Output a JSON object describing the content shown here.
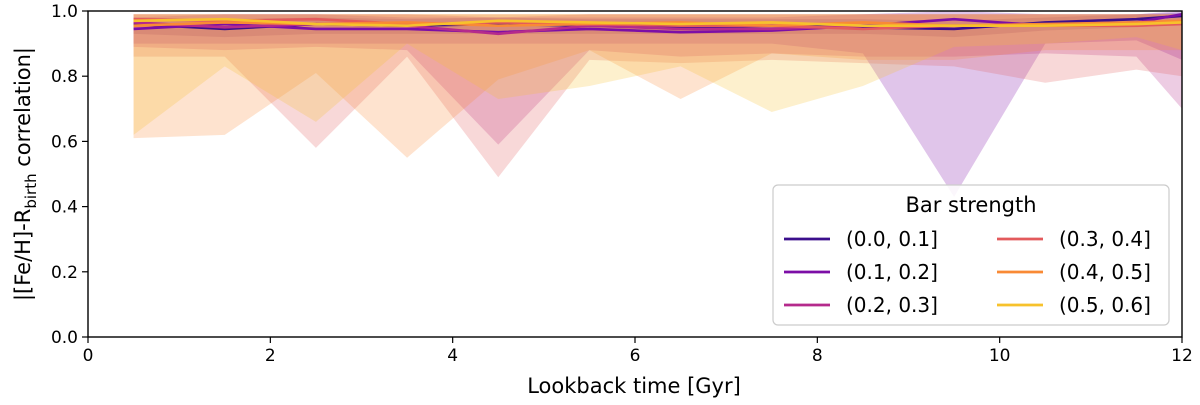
{
  "chart_data": {
    "type": "line",
    "title": "",
    "xlabel": "Lookback time [Gyr]",
    "ylabel_prefix": "|[Fe/H]-R",
    "ylabel_sub": "birth",
    "ylabel_suffix": " correlation|",
    "xlim": [
      0,
      12
    ],
    "ylim": [
      0.0,
      1.0
    ],
    "xticks": [
      0,
      2,
      4,
      6,
      8,
      10,
      12
    ],
    "yticks": [
      0.0,
      0.2,
      0.4,
      0.6,
      0.8,
      1.0
    ],
    "ytick_labels": [
      "0.0",
      "0.2",
      "0.4",
      "0.6",
      "0.8",
      "1.0"
    ],
    "grid": false,
    "legend": {
      "title": "Bar strength",
      "placement": "lower-right",
      "columns": 2
    },
    "x": [
      0.5,
      1.5,
      2.5,
      3.5,
      4.5,
      5.5,
      6.5,
      7.5,
      8.5,
      9.5,
      10.5,
      11.5,
      12.0
    ],
    "series": [
      {
        "name": "(0.0, 0.1]",
        "color": "#3b0f8c",
        "values": [
          0.96,
          0.945,
          0.96,
          0.955,
          0.96,
          0.955,
          0.95,
          0.955,
          0.95,
          0.945,
          0.965,
          0.975,
          0.985
        ],
        "lower": [
          0.93,
          0.92,
          0.93,
          0.93,
          0.93,
          0.93,
          0.93,
          0.93,
          0.93,
          0.92,
          0.94,
          0.95,
          0.96
        ],
        "upper": [
          0.98,
          0.975,
          0.98,
          0.975,
          0.98,
          0.975,
          0.975,
          0.975,
          0.975,
          0.97,
          0.98,
          0.99,
          0.995
        ]
      },
      {
        "name": "(0.1, 0.2]",
        "color": "#7c0ea6",
        "values": [
          0.945,
          0.96,
          0.945,
          0.945,
          0.935,
          0.945,
          0.935,
          0.94,
          0.955,
          0.975,
          0.955,
          0.965,
          0.99
        ],
        "lower": [
          0.9,
          0.9,
          0.9,
          0.9,
          0.9,
          0.9,
          0.9,
          0.9,
          0.87,
          0.43,
          0.9,
          0.91,
          0.85
        ],
        "upper": [
          0.98,
          0.99,
          0.99,
          0.98,
          0.98,
          0.98,
          0.98,
          0.98,
          0.99,
          1.0,
          0.99,
          0.99,
          1.0
        ]
      },
      {
        "name": "(0.2, 0.3]",
        "color": "#b52a8c",
        "values": [
          0.965,
          0.95,
          0.96,
          0.955,
          0.93,
          0.955,
          0.945,
          0.945,
          0.955,
          0.955,
          0.955,
          0.96,
          0.965
        ],
        "lower": [
          0.89,
          0.88,
          0.89,
          0.88,
          0.59,
          0.88,
          0.86,
          0.87,
          0.86,
          0.86,
          0.87,
          0.86,
          0.7
        ],
        "upper": [
          0.99,
          0.99,
          0.99,
          0.99,
          0.98,
          0.99,
          0.99,
          0.99,
          0.99,
          0.99,
          0.99,
          0.99,
          0.99
        ]
      },
      {
        "name": "(0.3, 0.4]",
        "color": "#e35a5c",
        "values": [
          0.975,
          0.97,
          0.975,
          0.96,
          0.965,
          0.96,
          0.955,
          0.955,
          0.945,
          0.955,
          0.955,
          0.955,
          0.96
        ],
        "lower": [
          0.86,
          0.86,
          0.58,
          0.86,
          0.49,
          0.85,
          0.84,
          0.85,
          0.84,
          0.83,
          0.78,
          0.82,
          0.8
        ],
        "upper": [
          0.99,
          0.99,
          0.99,
          0.99,
          0.99,
          0.99,
          0.99,
          0.99,
          0.99,
          0.99,
          0.99,
          0.99,
          0.99
        ]
      },
      {
        "name": "(0.4, 0.5]",
        "color": "#f98a35",
        "values": [
          0.955,
          0.965,
          0.96,
          0.965,
          0.955,
          0.96,
          0.965,
          0.955,
          0.965,
          0.955,
          0.96,
          0.965,
          0.97
        ],
        "lower": [
          0.61,
          0.62,
          0.81,
          0.55,
          0.79,
          0.88,
          0.73,
          0.87,
          0.85,
          0.85,
          0.88,
          0.88,
          0.88
        ],
        "upper": [
          0.99,
          0.99,
          0.99,
          0.99,
          0.99,
          0.99,
          0.99,
          0.99,
          0.99,
          0.99,
          0.99,
          0.99,
          0.99
        ]
      },
      {
        "name": "(0.5, 0.6]",
        "color": "#f7c22c",
        "values": [
          0.97,
          0.975,
          0.96,
          0.955,
          0.97,
          0.965,
          0.96,
          0.965,
          0.955,
          0.955,
          0.955,
          0.96,
          0.965
        ],
        "lower": [
          0.62,
          0.83,
          0.66,
          0.9,
          0.73,
          0.77,
          0.83,
          0.69,
          0.77,
          0.89,
          0.9,
          0.92,
          0.88
        ],
        "upper": [
          0.99,
          0.99,
          0.99,
          0.99,
          0.99,
          0.99,
          0.99,
          0.99,
          0.99,
          0.99,
          0.99,
          0.99,
          0.99
        ]
      }
    ]
  }
}
